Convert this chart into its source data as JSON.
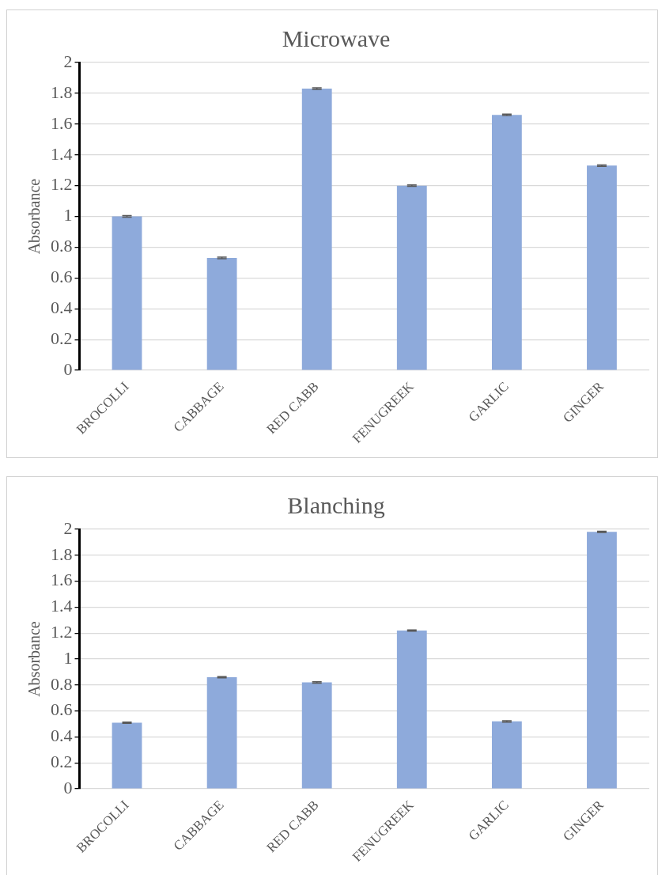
{
  "chart_data": [
    {
      "type": "bar",
      "title": "Microwave",
      "ylabel": "Absorbance",
      "categories": [
        "BROCOLLI",
        "CABBAGE",
        "RED CABB",
        "FENUGREEK",
        "GARLIC",
        "GINGER"
      ],
      "values": [
        1.0,
        0.73,
        1.83,
        1.2,
        1.66,
        1.33
      ],
      "errors": [
        0.005,
        0.005,
        0.005,
        0.005,
        0.005,
        0.005
      ],
      "color": "#8eaadb",
      "ylim": [
        0,
        2
      ],
      "yticks": [
        0,
        0.2,
        0.4,
        0.6,
        0.8,
        1,
        1.2,
        1.4,
        1.6,
        1.8,
        2
      ],
      "grid": "y"
    },
    {
      "type": "bar",
      "title": "Blanching",
      "ylabel": "Absorbance",
      "categories": [
        "BROCOLLI",
        "CABBAGE",
        "RED CABB",
        "FENUGREEK",
        "GARLIC",
        "GINGER"
      ],
      "values": [
        0.51,
        0.86,
        0.82,
        1.22,
        0.52,
        1.98
      ],
      "errors": [
        0.005,
        0.005,
        0.005,
        0.005,
        0.005,
        0.005
      ],
      "color": "#8eaadb",
      "ylim": [
        0,
        2
      ],
      "yticks": [
        0,
        0.2,
        0.4,
        0.6,
        0.8,
        1,
        1.2,
        1.4,
        1.6,
        1.8,
        2
      ],
      "grid": "y"
    }
  ]
}
